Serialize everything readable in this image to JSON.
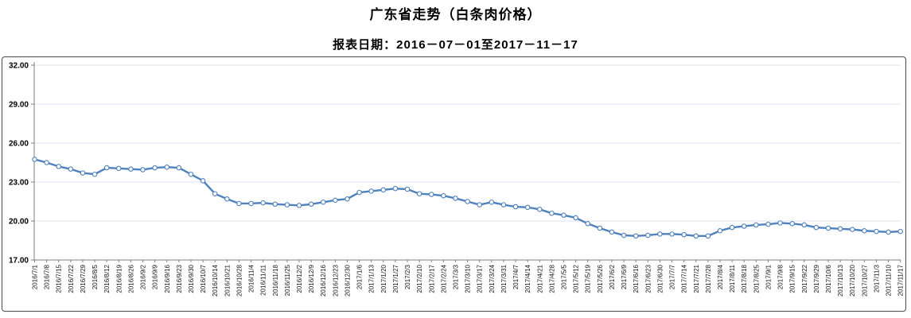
{
  "title": "广东省走势（白条肉价格）",
  "subtitle": "报表日期：2016－07－01至2017－11－17",
  "chart_data": {
    "type": "line",
    "title": "广东省走势（白条肉价格）",
    "subtitle": "报表日期：2016－07－01至2017－11－17",
    "xlabel": "",
    "ylabel": "",
    "ylim": [
      17,
      32
    ],
    "ytick_step": 3,
    "y_tick_labels": [
      "17.00",
      "20.00",
      "23.00",
      "26.00",
      "29.00",
      "32.00"
    ],
    "grid": true,
    "legend": "none",
    "marker": "open-circle",
    "colors": {
      "line": "#4F81BD",
      "marker_fill": "#FFFFFF",
      "grid": "#DCE4F0",
      "axis": "#7F7F7F",
      "border": "#4A4A4A",
      "text": "#000000"
    },
    "categories": [
      "2016/7/1",
      "2016/7/8",
      "2016/7/15",
      "2016/7/22",
      "2016/7/29",
      "2016/8/5",
      "2016/8/12",
      "2016/8/19",
      "2016/8/26",
      "2016/9/2",
      "2016/9/9",
      "2016/9/16",
      "2016/9/23",
      "2016/9/30",
      "2016/10/7",
      "2016/10/14",
      "2016/10/21",
      "2016/10/28",
      "2016/11/4",
      "2016/11/11",
      "2016/11/18",
      "2016/11/25",
      "2016/12/2",
      "2016/12/9",
      "2016/12/16",
      "2016/12/23",
      "2016/12/30",
      "2017/1/6",
      "2017/1/13",
      "2017/1/20",
      "2017/1/27",
      "2017/2/3",
      "2017/2/10",
      "2017/2/17",
      "2017/2/24",
      "2017/3/3",
      "2017/3/10",
      "2017/3/17",
      "2017/3/24",
      "2017/3/31",
      "2017/4/7",
      "2017/4/14",
      "2017/4/21",
      "2017/4/28",
      "2017/5/5",
      "2017/5/12",
      "2017/5/19",
      "2017/5/26",
      "2017/6/2",
      "2017/6/9",
      "2017/6/16",
      "2017/6/23",
      "2017/6/30",
      "2017/7/7",
      "2017/7/14",
      "2017/7/21",
      "2017/7/28",
      "2017/8/4",
      "2017/8/11",
      "2017/8/18",
      "2017/8/25",
      "2017/9/1",
      "2017/9/8",
      "2017/9/15",
      "2017/9/22",
      "2017/9/29",
      "2017/10/6",
      "2017/10/13",
      "2017/10/20",
      "2017/10/27",
      "2017/11/3",
      "2017/11/10",
      "2017/11/17"
    ],
    "values": [
      24.75,
      24.5,
      24.2,
      24.0,
      23.7,
      23.6,
      24.1,
      24.05,
      24.0,
      23.95,
      24.1,
      24.15,
      24.1,
      23.6,
      23.1,
      22.1,
      21.7,
      21.35,
      21.35,
      21.4,
      21.3,
      21.25,
      21.2,
      21.3,
      21.45,
      21.6,
      21.7,
      22.2,
      22.3,
      22.4,
      22.5,
      22.45,
      22.1,
      22.05,
      21.95,
      21.75,
      21.5,
      21.25,
      21.45,
      21.25,
      21.1,
      21.05,
      20.9,
      20.6,
      20.45,
      20.25,
      19.8,
      19.45,
      19.15,
      18.9,
      18.85,
      18.9,
      19.0,
      19.0,
      18.95,
      18.85,
      18.85,
      19.25,
      19.5,
      19.6,
      19.7,
      19.75,
      19.85,
      19.8,
      19.7,
      19.5,
      19.45,
      19.4,
      19.35,
      19.25,
      19.2,
      19.15,
      19.2
    ]
  }
}
